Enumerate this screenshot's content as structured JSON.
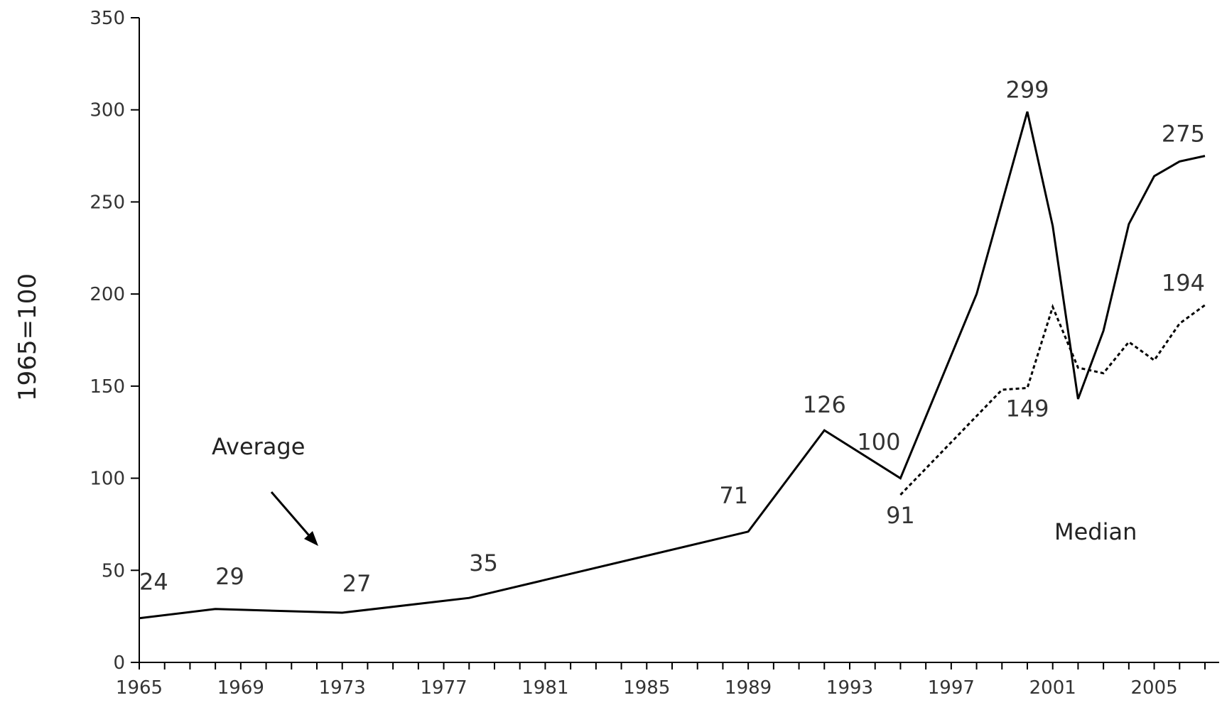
{
  "chart_data": {
    "type": "line",
    "title": "",
    "xlabel": "",
    "ylabel": "1965=100",
    "ylim": [
      0,
      350
    ],
    "xlim": [
      1965,
      2007
    ],
    "y_ticks": [
      "0",
      "50",
      "100",
      "150",
      "200",
      "250",
      "300",
      "350"
    ],
    "x_ticks": [
      "1965",
      "1969",
      "1973",
      "1977",
      "1981",
      "1985",
      "1989",
      "1993",
      "1997",
      "2001",
      "2005"
    ],
    "grid": false,
    "series": [
      {
        "name": "Average",
        "style": "solid",
        "x": [
          1965,
          1968,
          1973,
          1978,
          1989,
          1992,
          1995,
          1998,
          2000,
          2001,
          2002,
          2003,
          2004,
          2005,
          2006,
          2007
        ],
        "y": [
          24,
          29,
          27,
          35,
          71,
          126,
          100,
          200,
          299,
          237,
          143,
          180,
          238,
          264,
          272,
          275
        ]
      },
      {
        "name": "Median",
        "style": "dotted",
        "x": [
          1995,
          1999,
          2000,
          2001,
          2002,
          2003,
          2004,
          2005,
          2006,
          2007
        ],
        "y": [
          91,
          148,
          149,
          193,
          160,
          157,
          174,
          164,
          184,
          194
        ]
      }
    ],
    "data_labels": [
      {
        "text": "24",
        "x": 1965,
        "y": 24,
        "dx": 0,
        "dy": -40,
        "anchor": "start"
      },
      {
        "text": "29",
        "x": 1968,
        "y": 29,
        "dx": 0,
        "dy": -35,
        "anchor": "start"
      },
      {
        "text": "27",
        "x": 1973,
        "y": 27,
        "dx": 0,
        "dy": -30,
        "anchor": "start"
      },
      {
        "text": "35",
        "x": 1978,
        "y": 35,
        "dx": 0,
        "dy": -38,
        "anchor": "start"
      },
      {
        "text": "71",
        "x": 1989,
        "y": 71,
        "dx": 0,
        "dy": -40,
        "anchor": "end"
      },
      {
        "text": "126",
        "x": 1992,
        "y": 126,
        "dx": 0,
        "dy": -25,
        "anchor": "middle"
      },
      {
        "text": "100",
        "x": 1995,
        "y": 100,
        "dx": 0,
        "dy": -40,
        "anchor": "end"
      },
      {
        "text": "91",
        "x": 1995,
        "y": 91,
        "dx": 0,
        "dy": 40,
        "anchor": "middle"
      },
      {
        "text": "299",
        "x": 2000,
        "y": 299,
        "dx": 0,
        "dy": -20,
        "anchor": "middle"
      },
      {
        "text": "149",
        "x": 2000,
        "y": 149,
        "dx": 0,
        "dy": 40,
        "anchor": "middle"
      },
      {
        "text": "275",
        "x": 2007,
        "y": 275,
        "dx": 0,
        "dy": -20,
        "anchor": "end"
      },
      {
        "text": "194",
        "x": 2007,
        "y": 194,
        "dx": 0,
        "dy": -20,
        "anchor": "end"
      }
    ],
    "annotations": {
      "average_label": "Average",
      "median_label": "Median"
    }
  }
}
